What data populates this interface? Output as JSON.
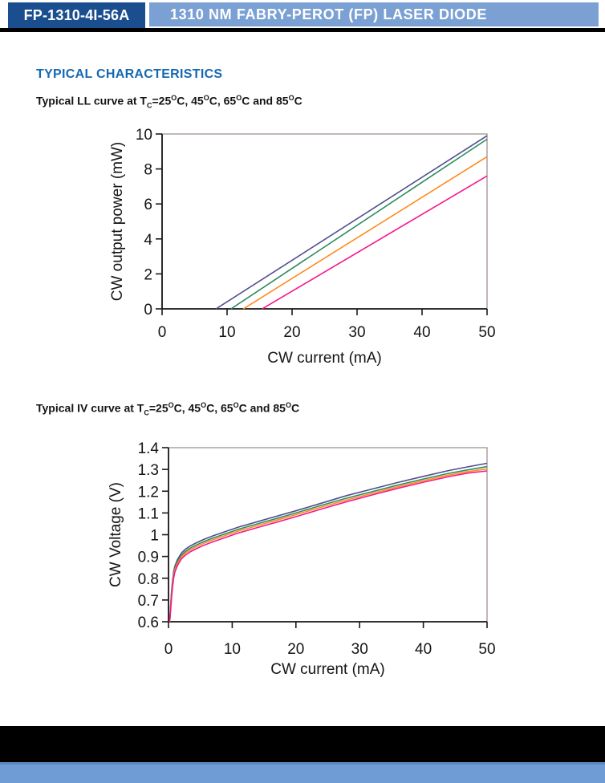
{
  "header": {
    "part_number": "FP-1310-4I-56A",
    "product_title": "1310 NM FABRY-PEROT (FP) LASER DIODE"
  },
  "section": {
    "title": "TYPICAL CHARACTERISTICS"
  },
  "colors": {
    "header_dark_bg": "#1b4e8f",
    "header_light_bg": "#7ba1d4",
    "heading_blue": "#1568b3",
    "footer_bar_blue": "#6f9cd4",
    "divider_black": "#000000",
    "plot_border_gray": "#a79a9a",
    "series_25c": "#4f4f8f",
    "series_45c": "#2e8b5e",
    "series_65c": "#ff8a1e",
    "series_85c": "#f5188d"
  },
  "chart_data": [
    {
      "type": "line",
      "title_plain": "Typical LL curve at Tc=25°C, 45°C, 65°C and 85°C",
      "title_segments": [
        {
          "text": "Typical LL curve at T"
        },
        {
          "text": "C",
          "style": "sub"
        },
        {
          "text": "=25"
        },
        {
          "text": "O",
          "style": "sup"
        },
        {
          "text": "C, 45"
        },
        {
          "text": "O",
          "style": "sup"
        },
        {
          "text": "C, 65"
        },
        {
          "text": "O",
          "style": "sup"
        },
        {
          "text": "C and 85"
        },
        {
          "text": "O",
          "style": "sup"
        },
        {
          "text": "C"
        }
      ],
      "xlabel": "CW current (mA)",
      "ylabel": "CW output power (mW)",
      "xlim": [
        0,
        50
      ],
      "ylim": [
        0,
        10
      ],
      "xticks": [
        0,
        10,
        20,
        30,
        40,
        50
      ],
      "xtick_labels": [
        "0",
        "10",
        "20",
        "30",
        "40",
        "50"
      ],
      "yticks": [
        0,
        2,
        4,
        6,
        8,
        10
      ],
      "ytick_labels": [
        "0",
        "2",
        "4",
        "6",
        "8",
        "10"
      ],
      "grid": false,
      "legend": "none",
      "series": [
        {
          "name": "Tc=25°C",
          "color": "#4f4f8f",
          "threshold_mA": 8.3,
          "points": [
            [
              8.3,
              0
            ],
            [
              50,
              9.9
            ]
          ]
        },
        {
          "name": "Tc=45°C",
          "color": "#2e8b5e",
          "threshold_mA": 10.6,
          "points": [
            [
              10.6,
              0
            ],
            [
              50,
              9.7
            ]
          ]
        },
        {
          "name": "Tc=65°C",
          "color": "#ff8a1e",
          "threshold_mA": 12.5,
          "points": [
            [
              12.5,
              0
            ],
            [
              50,
              8.7
            ]
          ]
        },
        {
          "name": "Tc=85°C",
          "color": "#f5188d",
          "threshold_mA": 15.4,
          "points": [
            [
              15.4,
              0
            ],
            [
              50,
              7.6
            ]
          ]
        }
      ]
    },
    {
      "type": "line",
      "title_plain": "Typical IV curve at Tc=25°C, 45°C, 65°C and 85°C",
      "title_segments": [
        {
          "text": "Typical IV curve at T"
        },
        {
          "text": "C",
          "style": "sub"
        },
        {
          "text": "=25"
        },
        {
          "text": "O",
          "style": "sup"
        },
        {
          "text": "C, 45"
        },
        {
          "text": "O",
          "style": "sup"
        },
        {
          "text": "C, 65"
        },
        {
          "text": "O",
          "style": "sup"
        },
        {
          "text": "C and 85"
        },
        {
          "text": "O",
          "style": "sup"
        },
        {
          "text": "C"
        }
      ],
      "xlabel": "CW current (mA)",
      "ylabel": "CW Voltage (V)",
      "xlim": [
        0,
        50
      ],
      "ylim": [
        0.6,
        1.4
      ],
      "xticks": [
        0,
        10,
        20,
        30,
        40,
        50
      ],
      "xtick_labels": [
        "0",
        "10",
        "20",
        "30",
        "40",
        "50"
      ],
      "yticks": [
        0.6,
        0.7,
        0.8,
        0.9,
        1.0,
        1.1,
        1.2,
        1.3,
        1.4
      ],
      "ytick_labels": [
        "0.6",
        "0.7",
        "0.8",
        "0.9",
        "1",
        "1.1",
        "1.2",
        "1.3",
        "1.4"
      ],
      "grid": false,
      "legend": "none",
      "series": [
        {
          "name": "Tc=25°C",
          "color": "#4f4f8f",
          "points": [
            [
              0.2,
              0.6
            ],
            [
              0.3,
              0.66
            ],
            [
              0.45,
              0.73
            ],
            [
              0.6,
              0.78
            ],
            [
              0.8,
              0.83
            ],
            [
              1,
              0.855
            ],
            [
              1.4,
              0.885
            ],
            [
              2,
              0.915
            ],
            [
              2.6,
              0.932
            ],
            [
              3.4,
              0.948
            ],
            [
              4.4,
              0.963
            ],
            [
              5.5,
              0.978
            ],
            [
              7,
              0.995
            ],
            [
              9,
              1.015
            ],
            [
              11,
              1.035
            ],
            [
              14,
              1.06
            ],
            [
              17,
              1.085
            ],
            [
              20,
              1.11
            ],
            [
              24,
              1.145
            ],
            [
              28,
              1.18
            ],
            [
              32,
              1.21
            ],
            [
              36,
              1.24
            ],
            [
              40,
              1.268
            ],
            [
              44,
              1.295
            ],
            [
              47,
              1.312
            ],
            [
              50,
              1.328
            ]
          ]
        },
        {
          "name": "Tc=45°C",
          "color": "#2e8b5e",
          "points": [
            [
              0.2,
              0.6
            ],
            [
              0.3,
              0.655
            ],
            [
              0.45,
              0.72
            ],
            [
              0.6,
              0.77
            ],
            [
              0.8,
              0.82
            ],
            [
              1,
              0.845
            ],
            [
              1.4,
              0.875
            ],
            [
              2,
              0.905
            ],
            [
              2.6,
              0.922
            ],
            [
              3.4,
              0.938
            ],
            [
              4.4,
              0.953
            ],
            [
              5.5,
              0.968
            ],
            [
              7,
              0.985
            ],
            [
              9,
              1.005
            ],
            [
              11,
              1.025
            ],
            [
              14,
              1.05
            ],
            [
              17,
              1.075
            ],
            [
              20,
              1.1
            ],
            [
              24,
              1.135
            ],
            [
              28,
              1.168
            ],
            [
              32,
              1.198
            ],
            [
              36,
              1.228
            ],
            [
              40,
              1.256
            ],
            [
              44,
              1.282
            ],
            [
              47,
              1.298
            ],
            [
              50,
              1.313
            ]
          ]
        },
        {
          "name": "Tc=65°C",
          "color": "#ff8a1e",
          "points": [
            [
              0.2,
              0.6
            ],
            [
              0.3,
              0.65
            ],
            [
              0.45,
              0.71
            ],
            [
              0.6,
              0.762
            ],
            [
              0.8,
              0.812
            ],
            [
              1,
              0.838
            ],
            [
              1.4,
              0.868
            ],
            [
              2,
              0.897
            ],
            [
              2.6,
              0.914
            ],
            [
              3.4,
              0.93
            ],
            [
              4.4,
              0.945
            ],
            [
              5.5,
              0.96
            ],
            [
              7,
              0.977
            ],
            [
              9,
              0.997
            ],
            [
              11,
              1.017
            ],
            [
              14,
              1.042
            ],
            [
              17,
              1.067
            ],
            [
              20,
              1.092
            ],
            [
              24,
              1.127
            ],
            [
              28,
              1.16
            ],
            [
              32,
              1.19
            ],
            [
              36,
              1.22
            ],
            [
              40,
              1.248
            ],
            [
              44,
              1.274
            ],
            [
              47,
              1.29
            ],
            [
              50,
              1.302
            ]
          ]
        },
        {
          "name": "Tc=85°C",
          "color": "#f5188d",
          "points": [
            [
              0.15,
              0.6
            ],
            [
              0.3,
              0.64
            ],
            [
              0.45,
              0.7
            ],
            [
              0.6,
              0.75
            ],
            [
              0.8,
              0.8
            ],
            [
              1,
              0.828
            ],
            [
              1.4,
              0.858
            ],
            [
              2,
              0.888
            ],
            [
              2.6,
              0.905
            ],
            [
              3.4,
              0.921
            ],
            [
              4.4,
              0.936
            ],
            [
              5.5,
              0.951
            ],
            [
              7,
              0.968
            ],
            [
              9,
              0.988
            ],
            [
              11,
              1.008
            ],
            [
              14,
              1.033
            ],
            [
              17,
              1.058
            ],
            [
              20,
              1.083
            ],
            [
              24,
              1.118
            ],
            [
              28,
              1.152
            ],
            [
              32,
              1.183
            ],
            [
              36,
              1.213
            ],
            [
              40,
              1.241
            ],
            [
              44,
              1.267
            ],
            [
              47,
              1.283
            ],
            [
              50,
              1.293
            ]
          ]
        }
      ]
    }
  ]
}
